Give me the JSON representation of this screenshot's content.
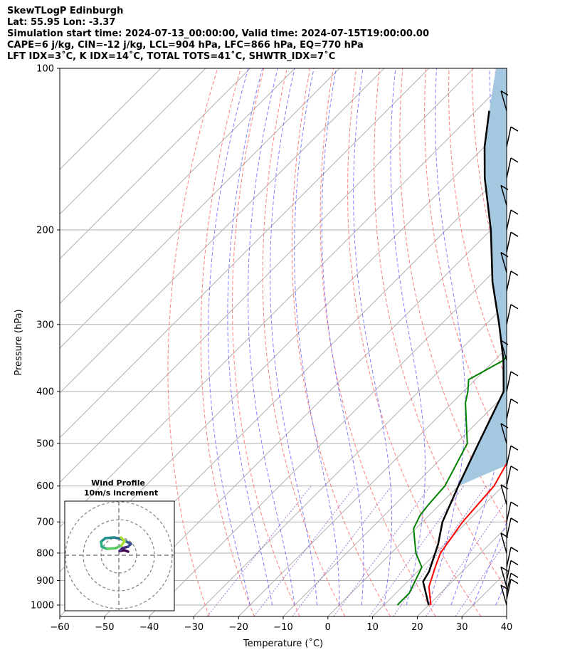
{
  "header": {
    "line1": "SkewTLogP Edinburgh",
    "line2": "Lat: 55.95   Lon: -3.37",
    "line3": "Simulation start time: 2024-07-13_00:00:00, Valid time: 2024-07-15T19:00:00.00",
    "line4": "CAPE=6 j/kg, CIN=-12 j/kg, LCL=904 hPa, LFC=866 hPa, EQ=770 hPa",
    "line5": "LFT IDX=3˚C, K IDX=14˚C, TOTAL TOTS=41˚C, SHWTR_IDX=7˚C"
  },
  "chart_data": [
    {
      "type": "line",
      "subtype": "skew-t log-p",
      "xlabel": "Temperature (˚C)",
      "ylabel": "Pressure (hPa)",
      "xlim": [
        -60,
        40
      ],
      "ylim": [
        1050,
        100
      ],
      "y_scale": "log",
      "x_ticks": [
        "−60",
        "−50",
        "−40",
        "−30",
        "−20",
        "−10",
        "0",
        "10",
        "20",
        "30",
        "40"
      ],
      "x_tick_values": [
        -60,
        -50,
        -40,
        -30,
        -20,
        -10,
        0,
        10,
        20,
        30,
        40
      ],
      "y_ticks": [
        "1000",
        "900",
        "800",
        "700",
        "600",
        "500",
        "400",
        "300",
        "200",
        "100"
      ],
      "y_tick_values": [
        1000,
        900,
        800,
        700,
        600,
        500,
        400,
        300,
        200,
        100
      ],
      "grid": true,
      "colors": {
        "temperature": "#ff0000",
        "dewpoint": "#008000",
        "parcel": "#000000",
        "cape_fill": "#a4c8e0",
        "dry_adiabat": "#ff6060",
        "moist_adiabat": "#6060ff",
        "mixing_ratio": "#8040c0",
        "isotherm": "#b0b0b0"
      },
      "series": [
        {
          "values_x_temp": [
            20.5,
            16.0,
            13.0,
            11.0,
            9.0,
            8.0,
            6.0,
            4.0,
            0.0,
            -4.0,
            -7.0,
            -9.0,
            -13.0,
            -15.0,
            -15.5,
            -9.0,
            -5.0,
            -3.0,
            -2.0,
            -1.0,
            0.5,
            2.0
          ],
          "values_p": [
            1000,
            925,
            850,
            800,
            700,
            600,
            550,
            500,
            400,
            350,
            300,
            280,
            270,
            250,
            220,
            200,
            180,
            160,
            150,
            130,
            110,
            100
          ]
        },
        {
          "values_x_temp": [
            13.0,
            13.0,
            10.0,
            5.5,
            -0.5,
            -2.0,
            -2.5,
            -3.0,
            -7.5,
            -17.0,
            -19.0,
            -21.5,
            -18.0,
            -20.0,
            -20.5,
            -22.5,
            -30.5,
            -33.0,
            -37.0,
            -40.0,
            -44.0,
            -47.0,
            -50.0,
            -55.0,
            -60.0
          ],
          "values_p": [
            1000,
            950,
            850,
            800,
            720,
            680,
            650,
            600,
            500,
            420,
            400,
            380,
            350,
            300,
            280,
            250,
            230,
            200,
            185,
            170,
            150,
            135,
            125,
            110,
            100
          ]
        },
        {
          "values_x_temp": [
            20.0,
            13.5,
            12.6,
            8.5,
            4.5,
            0.0,
            -5.0,
            -11.0,
            -18.0,
            -27.0,
            -38.0,
            -50.0,
            -63.0,
            -70.0,
            -77.0
          ],
          "values_p": [
            1000,
            904,
            866,
            770,
            700,
            600,
            500,
            400,
            350,
            300,
            250,
            200,
            160,
            140,
            120
          ]
        }
      ],
      "inset": {
        "type": "hodograph",
        "title": "Wind Profile",
        "subtitle": "10m/s increment",
        "rings": [
          10,
          20,
          30
        ]
      }
    }
  ]
}
